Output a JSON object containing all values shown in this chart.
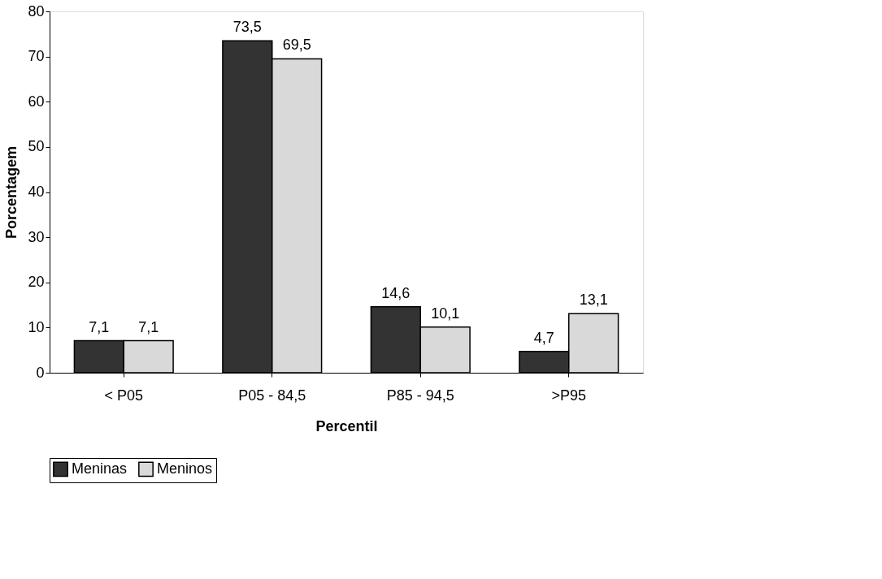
{
  "chart_data": {
    "type": "bar",
    "xlabel": "Percentil",
    "ylabel": "Porcentagem",
    "categories": [
      "< P05",
      "P05 - 84,5",
      "P85 - 94,5",
      ">P95"
    ],
    "series": [
      {
        "name": "Meninas",
        "color": "#333333",
        "values": [
          7.1,
          73.5,
          14.6,
          4.7
        ],
        "value_labels": [
          "7,1",
          "73,5",
          "14,6",
          "4,7"
        ]
      },
      {
        "name": "Meninos",
        "color": "#d9d9d9",
        "values": [
          7.1,
          69.5,
          10.1,
          13.1
        ],
        "value_labels": [
          "7,1",
          "69,5",
          "10,1",
          "13,1"
        ]
      }
    ],
    "ylim": [
      0,
      80
    ],
    "yticks": [
      0,
      10,
      20,
      30,
      40,
      50,
      60,
      70,
      80
    ],
    "grid": false,
    "legend": "bottom"
  }
}
